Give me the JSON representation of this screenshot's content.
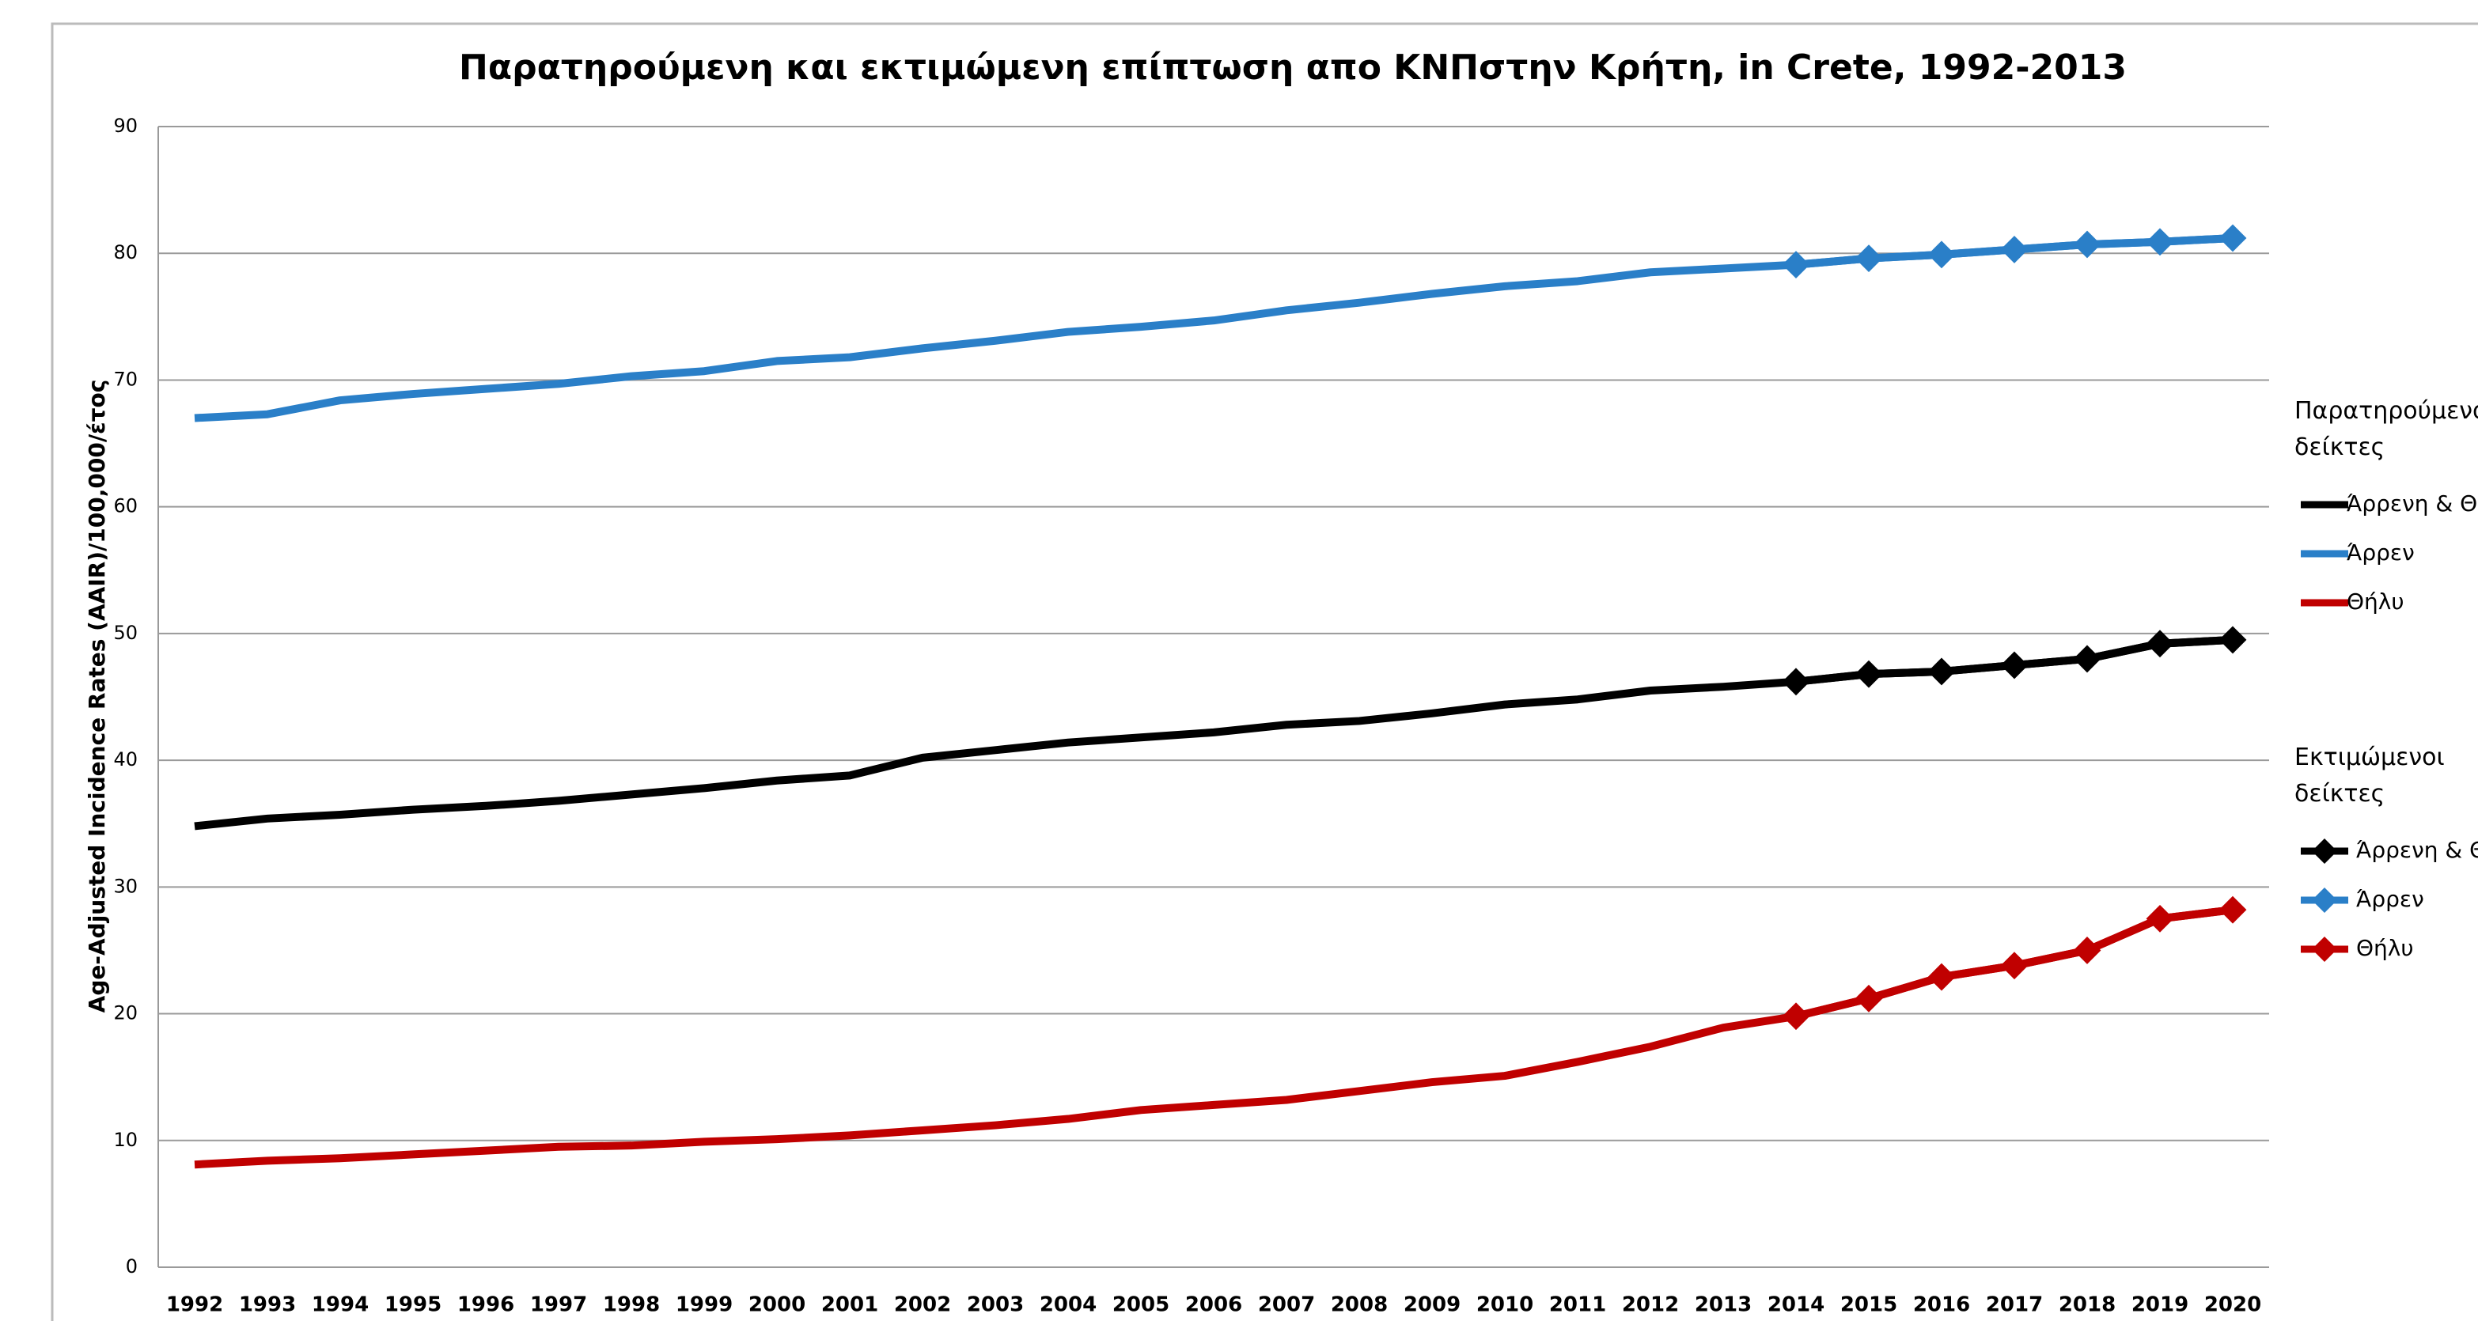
{
  "chart_data": {
    "type": "line",
    "title": "Παρατηρούμενη και εκτιμώμενη επίπτωση απο ΚΝΠστην Κρήτη, in Crete, 1992-2013",
    "y_label": "Age-Adjusted Incidence Rates (AAIR)/100,000/έτος",
    "categories": [
      "1992",
      "1993",
      "1994",
      "1995",
      "1996",
      "1997",
      "1998",
      "1999",
      "2000",
      "2001",
      "2002",
      "2003",
      "2004",
      "2005",
      "2006",
      "2007",
      "2008",
      "2009",
      "2010",
      "2011",
      "2012",
      "2013",
      "2014",
      "2015",
      "2016",
      "2017",
      "2018",
      "2019",
      "2020"
    ],
    "ylim": [
      0,
      90
    ],
    "yticks": [
      0,
      10,
      20,
      30,
      40,
      50,
      60,
      70,
      80,
      90
    ],
    "grid": true,
    "legend_groups": [
      "Παρατηρούμενοι δείκτες",
      "Εκτιμώμενοι δείκτες"
    ],
    "series": [
      {
        "name": "Άρρενη & Θήλυ",
        "color": "#000000",
        "values": [
          34.8,
          35.4,
          35.7,
          36.1,
          36.4,
          36.8,
          37.3,
          37.8,
          38.4,
          38.8,
          40.2,
          40.8,
          41.4,
          41.8,
          42.2,
          42.8,
          43.1,
          43.7,
          44.4,
          44.8,
          45.5,
          45.8,
          46.2,
          46.8,
          47.0,
          47.5,
          48.0,
          49.2,
          49.5
        ]
      },
      {
        "name": "Άρρεν",
        "color": "#2a7fc8",
        "values": [
          67,
          67.3,
          68.4,
          68.9,
          69.3,
          69.7,
          70.3,
          70.7,
          71.5,
          71.8,
          72.5,
          73.1,
          73.8,
          74.2,
          74.7,
          75.5,
          76.1,
          76.8,
          77.4,
          77.8,
          78.5,
          78.8,
          79.1,
          79.6,
          79.9,
          80.3,
          80.7,
          80.9,
          81.2
        ]
      },
      {
        "name": "Θήλυ",
        "color": "#c00000",
        "values": [
          8.1,
          8.4,
          8.6,
          8.9,
          9.2,
          9.5,
          9.6,
          9.9,
          10.1,
          10.4,
          10.8,
          11.2,
          11.7,
          12.4,
          12.8,
          13.2,
          13.9,
          14.6,
          15.1,
          16.2,
          17.4,
          18.9,
          19.8,
          21.2,
          22.9,
          23.8,
          25.0,
          27.5,
          28.2
        ]
      },
      {
        "name": "Άρρενη & Θήλυ",
        "color": "#000000",
        "marker": "diamond",
        "values": [
          null,
          null,
          null,
          null,
          null,
          null,
          null,
          null,
          null,
          null,
          null,
          null,
          null,
          null,
          null,
          null,
          null,
          null,
          null,
          null,
          null,
          null,
          46.2,
          46.8,
          47.0,
          47.5,
          48.0,
          49.2,
          49.5
        ]
      },
      {
        "name": "Άρρεν",
        "color": "#2a7fc8",
        "marker": "diamond",
        "values": [
          null,
          null,
          null,
          null,
          null,
          null,
          null,
          null,
          null,
          null,
          null,
          null,
          null,
          null,
          null,
          null,
          null,
          null,
          null,
          null,
          null,
          null,
          79.1,
          79.6,
          79.9,
          80.3,
          80.7,
          80.9,
          81.2
        ]
      },
      {
        "name": "Θήλυ",
        "color": "#c00000",
        "marker": "diamond",
        "values": [
          null,
          null,
          null,
          null,
          null,
          null,
          null,
          null,
          null,
          null,
          null,
          null,
          null,
          null,
          null,
          null,
          null,
          null,
          null,
          null,
          null,
          null,
          19.8,
          21.2,
          22.9,
          23.8,
          25.0,
          27.5,
          28.2
        ]
      }
    ]
  }
}
